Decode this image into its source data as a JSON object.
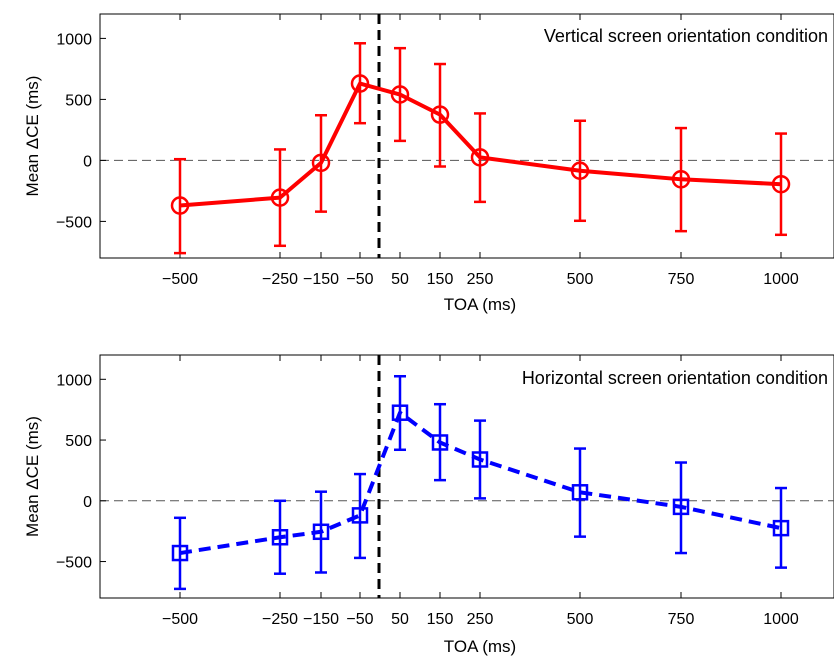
{
  "chart_data": [
    {
      "type": "line",
      "title": "Vertical screen orientation condition",
      "xlabel": "TOA (ms)",
      "ylabel": "Mean ΔCE (ms)",
      "x_ticks": [
        -500,
        -250,
        -150,
        -50,
        50,
        150,
        250,
        500,
        750,
        1000
      ],
      "y_ticks": [
        -500,
        0,
        500,
        1000
      ],
      "ylim": [
        -800,
        1200
      ],
      "reference_lines": {
        "horizontal_zero": "dashed gray",
        "vertical_onset": "dashed black"
      },
      "series": [
        {
          "color": "#ff0000",
          "marker": "circle",
          "line_style": "solid",
          "points": [
            {
              "x": -500,
              "y": -370,
              "err_low": -760,
              "err_high": 10
            },
            {
              "x": -250,
              "y": -305,
              "err_low": -700,
              "err_high": 90
            },
            {
              "x": -150,
              "y": -20,
              "err_low": -420,
              "err_high": 370
            },
            {
              "x": -50,
              "y": 630,
              "err_low": 305,
              "err_high": 960
            },
            {
              "x": 50,
              "y": 540,
              "err_low": 160,
              "err_high": 920
            },
            {
              "x": 150,
              "y": 375,
              "err_low": -50,
              "err_high": 790
            },
            {
              "x": 250,
              "y": 25,
              "err_low": -340,
              "err_high": 385
            },
            {
              "x": 500,
              "y": -85,
              "err_low": -495,
              "err_high": 325
            },
            {
              "x": 750,
              "y": -155,
              "err_low": -580,
              "err_high": 265
            },
            {
              "x": 1000,
              "y": -195,
              "err_low": -610,
              "err_high": 220
            }
          ]
        }
      ]
    },
    {
      "type": "line",
      "title": "Horizontal screen orientation condition",
      "xlabel": "TOA (ms)",
      "ylabel": "Mean ΔCE (ms)",
      "x_ticks": [
        -500,
        -250,
        -150,
        -50,
        50,
        150,
        250,
        500,
        750,
        1000
      ],
      "y_ticks": [
        -500,
        0,
        500,
        1000
      ],
      "ylim": [
        -800,
        1200
      ],
      "reference_lines": {
        "horizontal_zero": "dashed gray",
        "vertical_onset": "dashed black"
      },
      "series": [
        {
          "color": "#0000ff",
          "marker": "square",
          "line_style": "dashed",
          "points": [
            {
              "x": -500,
              "y": -430,
              "err_low": -725,
              "err_high": -140
            },
            {
              "x": -250,
              "y": -300,
              "err_low": -600,
              "err_high": 0
            },
            {
              "x": -150,
              "y": -255,
              "err_low": -590,
              "err_high": 75
            },
            {
              "x": -50,
              "y": -120,
              "err_low": -470,
              "err_high": 220
            },
            {
              "x": 50,
              "y": 725,
              "err_low": 420,
              "err_high": 1025
            },
            {
              "x": 150,
              "y": 480,
              "err_low": 170,
              "err_high": 795
            },
            {
              "x": 250,
              "y": 340,
              "err_low": 20,
              "err_high": 660
            },
            {
              "x": 500,
              "y": 70,
              "err_low": -295,
              "err_high": 430
            },
            {
              "x": 750,
              "y": -50,
              "err_low": -430,
              "err_high": 315
            },
            {
              "x": 1000,
              "y": -225,
              "err_low": -550,
              "err_high": 105
            }
          ]
        }
      ]
    }
  ]
}
